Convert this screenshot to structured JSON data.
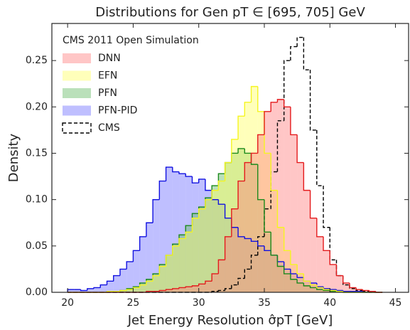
{
  "chart_data": {
    "type": "histogram",
    "title": "Distributions for Gen pT ∈ [695, 705] GeV",
    "x_label": "Jet Energy Resolution σ̂pT [GeV]",
    "y_label": "Density",
    "legend_title": "CMS 2011 Open Simulation",
    "legend_position": "upper left",
    "xlim": [
      18.8,
      46
    ],
    "ylim": [
      0,
      0.29
    ],
    "xticks": [
      20,
      25,
      30,
      35,
      40,
      45
    ],
    "yticks": [
      {
        "value": 0,
        "label": "0.00"
      },
      {
        "value": 0.05,
        "label": "0.05"
      },
      {
        "value": 0.1,
        "label": "0.10"
      },
      {
        "value": 0.15,
        "label": "0.15"
      },
      {
        "value": 0.2,
        "label": "0.20"
      },
      {
        "value": 0.25,
        "label": "0.25"
      }
    ],
    "bins": [
      20,
      20.5,
      21,
      21.5,
      22,
      22.5,
      23,
      23.5,
      24,
      24.5,
      25,
      25.5,
      26,
      26.5,
      27,
      27.5,
      28,
      28.5,
      29,
      29.5,
      30,
      30.5,
      31,
      31.5,
      32,
      32.5,
      33,
      33.5,
      34,
      34.5,
      35,
      35.5,
      36,
      36.5,
      37,
      37.5,
      38,
      38.5,
      39,
      39.5,
      40,
      40.5,
      41,
      41.5,
      42,
      42.5,
      43,
      43.5,
      44
    ],
    "series": [
      {
        "name": "DNN",
        "color": "#e41a1c",
        "fill": "#ff8080",
        "linestyle": "solid",
        "values": [
          0,
          0,
          0,
          0,
          0,
          0,
          0,
          0,
          0,
          0,
          0,
          0,
          0.001,
          0.001,
          0.002,
          0.003,
          0.004,
          0.005,
          0.006,
          0.007,
          0.009,
          0.012,
          0.02,
          0.035,
          0.06,
          0.09,
          0.12,
          0.14,
          0.15,
          0.17,
          0.195,
          0.205,
          0.208,
          0.2,
          0.17,
          0.14,
          0.11,
          0.08,
          0.06,
          0.045,
          0.03,
          0.018,
          0.01,
          0.005,
          0.003,
          0.002,
          0.001,
          0
        ]
      },
      {
        "name": "EFN",
        "color": "#f5f520",
        "fill": "#ffff66",
        "linestyle": "solid",
        "values": [
          0,
          0,
          0,
          0,
          0,
          0,
          0.001,
          0.001,
          0.002,
          0.003,
          0.005,
          0.008,
          0.012,
          0.018,
          0.028,
          0.04,
          0.05,
          0.058,
          0.065,
          0.08,
          0.09,
          0.1,
          0.11,
          0.12,
          0.14,
          0.165,
          0.19,
          0.205,
          0.222,
          0.195,
          0.15,
          0.11,
          0.07,
          0.045,
          0.03,
          0.02,
          0.012,
          0.008,
          0.005,
          0.003,
          0.002,
          0.001,
          0,
          0,
          0,
          0,
          0,
          0
        ]
      },
      {
        "name": "PFN",
        "color": "#1a8a1a",
        "fill": "#66bb66",
        "linestyle": "solid",
        "values": [
          0,
          0,
          0,
          0,
          0,
          0,
          0.001,
          0.001,
          0.002,
          0.004,
          0.006,
          0.01,
          0.014,
          0.02,
          0.03,
          0.04,
          0.052,
          0.062,
          0.072,
          0.085,
          0.092,
          0.102,
          0.115,
          0.128,
          0.14,
          0.15,
          0.155,
          0.15,
          0.138,
          0.1,
          0.065,
          0.04,
          0.028,
          0.02,
          0.014,
          0.01,
          0.007,
          0.005,
          0.003,
          0.002,
          0.001,
          0.001,
          0,
          0,
          0,
          0,
          0,
          0
        ]
      },
      {
        "name": "PFN-PID",
        "color": "#1010e0",
        "fill": "#7070ff",
        "linestyle": "solid",
        "values": [
          0.003,
          0.003,
          0.002,
          0.004,
          0.005,
          0.008,
          0.012,
          0.018,
          0.025,
          0.033,
          0.045,
          0.06,
          0.075,
          0.1,
          0.12,
          0.135,
          0.13,
          0.128,
          0.125,
          0.118,
          0.122,
          0.11,
          0.1,
          0.095,
          0.08,
          0.07,
          0.06,
          0.058,
          0.055,
          0.05,
          0.045,
          0.04,
          0.033,
          0.025,
          0.02,
          0.016,
          0.012,
          0.01,
          0.006,
          0.004,
          0.003,
          0.002,
          0.001,
          0.001,
          0.001,
          0,
          0,
          0
        ]
      },
      {
        "name": "CMS",
        "color": "#000000",
        "fill": "none",
        "linestyle": "dashed",
        "values": [
          0,
          0,
          0,
          0,
          0,
          0,
          0,
          0,
          0,
          0,
          0,
          0,
          0,
          0,
          0,
          0,
          0,
          0,
          0,
          0,
          0,
          0,
          0.001,
          0.002,
          0.004,
          0.008,
          0.015,
          0.025,
          0.04,
          0.06,
          0.09,
          0.13,
          0.185,
          0.25,
          0.265,
          0.275,
          0.24,
          0.175,
          0.115,
          0.07,
          0.035,
          0.018,
          0.008,
          0.004,
          0.002,
          0.001,
          0,
          0
        ]
      }
    ]
  }
}
